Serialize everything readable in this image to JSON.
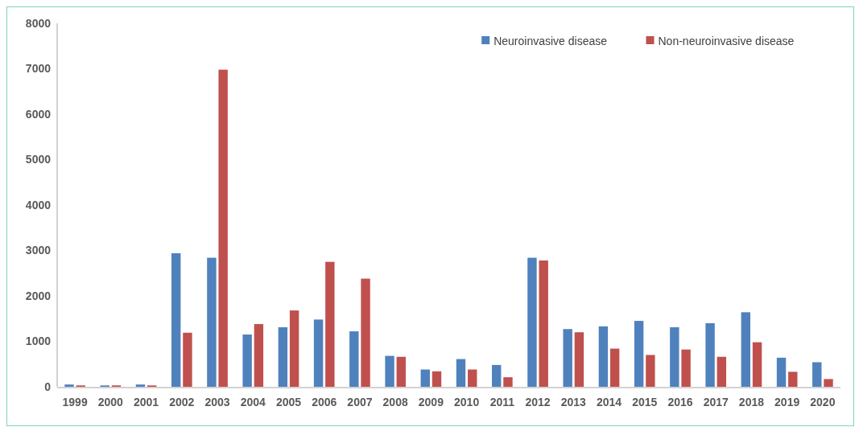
{
  "chart_data": {
    "type": "bar",
    "categories": [
      "1999",
      "2000",
      "2001",
      "2002",
      "2003",
      "2004",
      "2005",
      "2006",
      "2007",
      "2008",
      "2009",
      "2010",
      "2011",
      "2012",
      "2013",
      "2014",
      "2015",
      "2016",
      "2017",
      "2018",
      "2019",
      "2020"
    ],
    "series": [
      {
        "name": "Neuroinvasive disease",
        "color": "#4f81bd",
        "values": [
          50,
          30,
          50,
          2940,
          2840,
          1150,
          1310,
          1480,
          1220,
          680,
          380,
          610,
          480,
          2840,
          1270,
          1330,
          1450,
          1310,
          1400,
          1640,
          640,
          540
        ]
      },
      {
        "name": "Non-neuroinvasive disease",
        "color": "#c0504d",
        "values": [
          30,
          30,
          30,
          1190,
          6980,
          1380,
          1680,
          2750,
          2380,
          660,
          340,
          380,
          210,
          2780,
          1200,
          840,
          700,
          820,
          660,
          980,
          330,
          170
        ]
      }
    ],
    "ylim": [
      0,
      8000
    ],
    "yticks": [
      0,
      1000,
      2000,
      3000,
      4000,
      5000,
      6000,
      7000,
      8000
    ],
    "grid": false,
    "legend": "top right"
  }
}
